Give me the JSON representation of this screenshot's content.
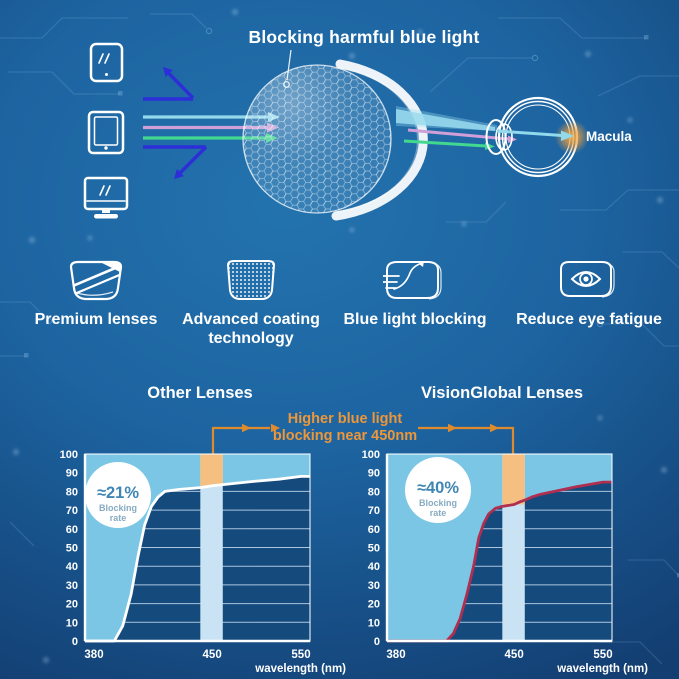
{
  "colors": {
    "chart_fill": "#7cc6e5",
    "chart_under": "#154a7d",
    "band": "#c9e2f4",
    "band_highlight": "#f6bf82",
    "grid": "#c6dcef",
    "axis": "#ffffff",
    "badge_text": "#3f86b3",
    "badge_sub": "#86abc2",
    "annotation": "#ee9738",
    "arrow": "#e08a2e",
    "ray_cyan": "#92d9ec",
    "ray_pink": "#cf9fd8",
    "ray_green": "#42d890",
    "ray_blue_reflected": "#2d2ed8",
    "macula_glow": "#f5a93e",
    "curve_other": "#ffffff",
    "curve_vision": "#b02e50"
  },
  "hero": {
    "title": "Blocking harmful blue light",
    "macula_label": "Macula",
    "icons": [
      "smartphone-icon",
      "tablet-icon",
      "monitor-icon",
      "coated-lens-icon",
      "eye-cross-section-icon"
    ]
  },
  "features": [
    {
      "icon": "lens-stripes-icon",
      "label": "Premium lenses"
    },
    {
      "icon": "lens-dots-icon",
      "label": "Advanced coating technology"
    },
    {
      "icon": "lens-deflect-icon",
      "label": "Blue light blocking"
    },
    {
      "icon": "lens-eye-icon",
      "label": "Reduce eye fatigue"
    }
  ],
  "comparison": {
    "annotation_line1": "Higher blue light",
    "annotation_line2": "blocking near 450nm"
  },
  "chart_data": [
    {
      "type": "area",
      "title": "Other Lenses",
      "xlabel": "wavelength (nm)",
      "ylabel": "",
      "xticks": [
        380,
        450,
        550
      ],
      "yticks": [
        0,
        10,
        20,
        30,
        40,
        50,
        60,
        70,
        80,
        90,
        100
      ],
      "xlim": [
        380,
        550
      ],
      "ylim": [
        0,
        100
      ],
      "grid": true,
      "band_nm": [
        443,
        462
      ],
      "badge": {
        "value": "≈21%",
        "label_line1": "Blocking",
        "label_line2": "rate"
      },
      "curve_color_key": "curve_other",
      "points": [
        [
          380,
          0
        ],
        [
          392,
          0
        ],
        [
          397,
          8
        ],
        [
          402,
          25
        ],
        [
          406,
          45
        ],
        [
          410,
          62
        ],
        [
          414,
          72
        ],
        [
          418,
          77
        ],
        [
          422,
          80
        ],
        [
          430,
          81
        ],
        [
          443,
          82
        ],
        [
          450,
          83
        ],
        [
          470,
          84
        ],
        [
          500,
          85.5
        ],
        [
          525,
          86.5
        ],
        [
          550,
          88
        ]
      ]
    },
    {
      "type": "area",
      "title": "VisionGlobal Lenses",
      "xlabel": "wavelength (nm)",
      "ylabel": "",
      "xticks": [
        380,
        450,
        550
      ],
      "yticks": [
        0,
        10,
        20,
        30,
        40,
        50,
        60,
        70,
        80,
        90,
        100
      ],
      "xlim": [
        380,
        550
      ],
      "ylim": [
        0,
        100
      ],
      "grid": true,
      "band_nm": [
        443,
        462
      ],
      "badge": {
        "value": "≈40%",
        "label_line1": "Blocking",
        "label_line2": "rate"
      },
      "curve_color_key": "curve_vision",
      "points": [
        [
          380,
          0
        ],
        [
          410,
          0
        ],
        [
          414,
          4
        ],
        [
          418,
          12
        ],
        [
          422,
          25
        ],
        [
          426,
          40
        ],
        [
          429,
          55
        ],
        [
          432,
          63
        ],
        [
          435,
          68
        ],
        [
          439,
          71
        ],
        [
          443,
          72
        ],
        [
          450,
          73
        ],
        [
          457,
          74.5
        ],
        [
          463,
          75.5
        ],
        [
          470,
          77
        ],
        [
          480,
          78.5
        ],
        [
          500,
          80.5
        ],
        [
          520,
          82.5
        ],
        [
          550,
          85
        ]
      ]
    }
  ]
}
